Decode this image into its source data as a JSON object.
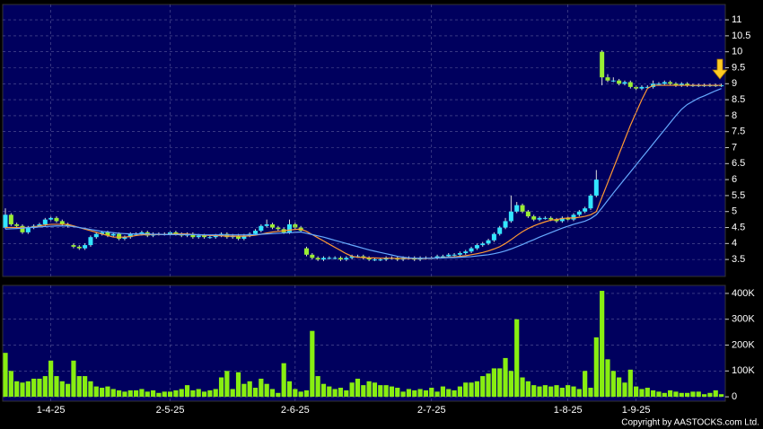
{
  "chart_data": [
    {
      "type": "candlestick",
      "up_color": "#33e6ff",
      "down_color": "#99ee33",
      "ylim": [
        2.97,
        11.48
      ],
      "yticks": [
        3.5,
        4,
        4.5,
        5,
        5.5,
        6,
        6.5,
        7,
        7.5,
        8,
        8.5,
        9,
        9.5,
        10,
        10.5,
        11
      ],
      "grid": true,
      "open": [
        4.5,
        4.9,
        4.6,
        4.55,
        4.35,
        4.5,
        4.55,
        4.6,
        4.75,
        4.8,
        4.7,
        4.6,
        3.95,
        3.9,
        3.85,
        3.95,
        4.2,
        4.3,
        4.35,
        4.25,
        4.3,
        4.15,
        4.2,
        4.3,
        4.3,
        4.35,
        4.25,
        4.3,
        4.3,
        4.3,
        4.35,
        4.3,
        4.25,
        4.3,
        4.2,
        4.25,
        4.2,
        4.2,
        4.25,
        4.3,
        4.2,
        4.25,
        4.15,
        4.25,
        4.3,
        4.4,
        4.55,
        4.6,
        4.5,
        4.45,
        4.35,
        4.6,
        4.5,
        3.85,
        3.65,
        3.55,
        3.5,
        3.55,
        3.55,
        3.55,
        3.5,
        3.55,
        3.6,
        3.6,
        3.55,
        3.5,
        3.5,
        3.5,
        3.55,
        3.55,
        3.5,
        3.55,
        3.55,
        3.5,
        3.55,
        3.55,
        3.55,
        3.6,
        3.6,
        3.65,
        3.65,
        3.7,
        3.75,
        3.85,
        3.95,
        4.0,
        4.1,
        4.3,
        4.5,
        4.7,
        5.0,
        5.2,
        5.0,
        4.85,
        4.75,
        4.8,
        4.8,
        4.75,
        4.7,
        4.8,
        4.75,
        4.9,
        5.0,
        5.1,
        5.5,
        10.0,
        9.2,
        9.1,
        9.1,
        9.0,
        9.05,
        8.9,
        8.85,
        8.9,
        8.9,
        9.0,
        9.0,
        9.05,
        9.0,
        8.95,
        9.0,
        8.95,
        8.95,
        8.95,
        8.95,
        8.95,
        8.95
      ],
      "high": [
        5.1,
        4.95,
        4.65,
        4.6,
        4.55,
        4.6,
        4.65,
        4.8,
        4.85,
        4.85,
        4.75,
        4.65,
        4.0,
        3.95,
        4.0,
        4.25,
        4.35,
        4.4,
        4.4,
        4.35,
        4.35,
        4.25,
        4.35,
        4.35,
        4.4,
        4.4,
        4.35,
        4.35,
        4.35,
        4.4,
        4.4,
        4.35,
        4.35,
        4.35,
        4.3,
        4.3,
        4.25,
        4.3,
        4.35,
        4.35,
        4.3,
        4.3,
        4.3,
        4.35,
        4.45,
        4.6,
        4.75,
        4.65,
        4.55,
        4.5,
        4.75,
        4.65,
        4.55,
        3.9,
        3.7,
        3.6,
        3.6,
        3.6,
        3.6,
        3.6,
        3.6,
        3.65,
        3.65,
        3.65,
        3.6,
        3.55,
        3.55,
        3.6,
        3.6,
        3.6,
        3.6,
        3.6,
        3.6,
        3.6,
        3.6,
        3.6,
        3.65,
        3.65,
        3.7,
        3.7,
        3.75,
        3.8,
        3.9,
        4.0,
        4.05,
        4.15,
        4.35,
        4.55,
        4.8,
        5.5,
        5.3,
        5.25,
        5.05,
        4.9,
        4.85,
        4.85,
        4.85,
        4.8,
        4.85,
        4.85,
        4.95,
        5.05,
        5.15,
        5.55,
        6.3,
        10.05,
        9.3,
        9.2,
        9.15,
        9.1,
        9.1,
        8.95,
        8.95,
        8.95,
        9.1,
        9.05,
        9.1,
        9.1,
        9.05,
        9.05,
        9.05,
        9.0,
        9.0,
        9.0,
        9.0,
        9.0,
        9.0
      ],
      "low": [
        4.45,
        4.55,
        4.5,
        4.3,
        4.3,
        4.45,
        4.5,
        4.55,
        4.7,
        4.65,
        4.55,
        4.5,
        3.85,
        3.8,
        3.8,
        3.9,
        4.15,
        4.25,
        4.2,
        4.2,
        4.1,
        4.1,
        4.15,
        4.25,
        4.25,
        4.2,
        4.2,
        4.25,
        4.25,
        4.25,
        4.25,
        4.2,
        4.2,
        4.15,
        4.15,
        4.15,
        4.15,
        4.15,
        4.2,
        4.15,
        4.15,
        4.1,
        4.1,
        4.2,
        4.25,
        4.35,
        4.5,
        4.45,
        4.4,
        4.3,
        4.3,
        4.45,
        4.35,
        3.6,
        3.5,
        3.45,
        3.45,
        3.5,
        3.5,
        3.45,
        3.45,
        3.5,
        3.55,
        3.5,
        3.45,
        3.45,
        3.45,
        3.45,
        3.5,
        3.45,
        3.45,
        3.5,
        3.45,
        3.45,
        3.5,
        3.5,
        3.5,
        3.55,
        3.55,
        3.6,
        3.6,
        3.65,
        3.7,
        3.8,
        3.9,
        3.95,
        4.05,
        4.25,
        4.45,
        4.65,
        4.95,
        4.95,
        4.8,
        4.7,
        4.7,
        4.75,
        4.7,
        4.65,
        4.65,
        4.7,
        4.7,
        4.85,
        4.95,
        5.05,
        5.45,
        8.95,
        9.05,
        9.05,
        8.95,
        8.95,
        8.85,
        8.8,
        8.8,
        8.85,
        8.85,
        8.95,
        8.95,
        8.95,
        8.9,
        8.9,
        8.9,
        8.9,
        8.9,
        8.9,
        8.9,
        8.9,
        8.9
      ],
      "close": [
        4.9,
        4.6,
        4.55,
        4.35,
        4.5,
        4.55,
        4.6,
        4.75,
        4.8,
        4.7,
        4.6,
        4.55,
        3.9,
        3.85,
        3.95,
        4.2,
        4.3,
        4.35,
        4.25,
        4.3,
        4.15,
        4.2,
        4.3,
        4.3,
        4.35,
        4.25,
        4.3,
        4.3,
        4.3,
        4.35,
        4.3,
        4.25,
        4.3,
        4.2,
        4.25,
        4.2,
        4.2,
        4.25,
        4.3,
        4.2,
        4.25,
        4.15,
        4.25,
        4.3,
        4.4,
        4.55,
        4.6,
        4.5,
        4.45,
        4.35,
        4.6,
        4.5,
        4.4,
        3.65,
        3.55,
        3.5,
        3.55,
        3.55,
        3.55,
        3.5,
        3.55,
        3.6,
        3.6,
        3.55,
        3.5,
        3.5,
        3.5,
        3.55,
        3.55,
        3.5,
        3.55,
        3.55,
        3.5,
        3.55,
        3.55,
        3.55,
        3.6,
        3.6,
        3.65,
        3.65,
        3.7,
        3.75,
        3.85,
        3.95,
        4.0,
        4.1,
        4.3,
        4.5,
        4.7,
        5.0,
        5.2,
        5.0,
        4.85,
        4.75,
        4.8,
        4.8,
        4.75,
        4.7,
        4.8,
        4.75,
        4.9,
        5.0,
        5.1,
        5.5,
        6.0,
        9.2,
        9.1,
        9.1,
        9.0,
        9.05,
        8.9,
        8.85,
        8.9,
        8.9,
        9.0,
        9.0,
        9.05,
        9.0,
        8.95,
        9.0,
        8.95,
        8.95,
        8.95,
        8.95,
        8.95,
        8.95,
        8.95
      ],
      "lines": [
        {
          "color": "#ff9933",
          "values": [
            4.5,
            4.5,
            4.5,
            4.5,
            4.5,
            4.52,
            4.55,
            4.58,
            4.6,
            4.6,
            4.6,
            4.6,
            4.55,
            4.5,
            4.45,
            4.4,
            4.35,
            4.3,
            4.25,
            4.2,
            4.2,
            4.2,
            4.22,
            4.25,
            4.27,
            4.28,
            4.28,
            4.28,
            4.28,
            4.29,
            4.3,
            4.3,
            4.3,
            4.28,
            4.27,
            4.26,
            4.25,
            4.25,
            4.24,
            4.23,
            4.23,
            4.23,
            4.23,
            4.24,
            4.26,
            4.29,
            4.33,
            4.36,
            4.38,
            4.4,
            4.42,
            4.44,
            4.45,
            4.38,
            4.28,
            4.18,
            4.08,
            3.98,
            3.88,
            3.78,
            3.68,
            3.6,
            3.57,
            3.56,
            3.55,
            3.55,
            3.54,
            3.54,
            3.54,
            3.53,
            3.53,
            3.53,
            3.53,
            3.53,
            3.53,
            3.54,
            3.55,
            3.56,
            3.57,
            3.58,
            3.6,
            3.62,
            3.65,
            3.68,
            3.72,
            3.77,
            3.83,
            3.9,
            4.0,
            4.12,
            4.25,
            4.37,
            4.47,
            4.55,
            4.62,
            4.68,
            4.73,
            4.75,
            4.78,
            4.8,
            4.8,
            4.82,
            4.85,
            4.9,
            5.0,
            5.45,
            5.9,
            6.35,
            6.8,
            7.25,
            7.7,
            8.1,
            8.5,
            8.85,
            8.95,
            8.95,
            8.95,
            8.95,
            8.95,
            8.95,
            8.95,
            8.95,
            8.95,
            8.95,
            8.95,
            8.95,
            8.95
          ]
        },
        {
          "color": "#66aaff",
          "values": [
            4.45,
            4.46,
            4.47,
            4.48,
            4.5,
            4.5,
            4.52,
            4.53,
            4.54,
            4.55,
            4.55,
            4.55,
            4.53,
            4.5,
            4.47,
            4.44,
            4.41,
            4.38,
            4.36,
            4.34,
            4.32,
            4.31,
            4.3,
            4.3,
            4.3,
            4.3,
            4.29,
            4.29,
            4.28,
            4.28,
            4.28,
            4.28,
            4.28,
            4.28,
            4.28,
            4.27,
            4.27,
            4.27,
            4.27,
            4.27,
            4.27,
            4.27,
            4.27,
            4.27,
            4.28,
            4.29,
            4.3,
            4.31,
            4.32,
            4.33,
            4.34,
            4.35,
            4.36,
            4.32,
            4.28,
            4.24,
            4.2,
            4.15,
            4.1,
            4.05,
            4.0,
            3.95,
            3.9,
            3.85,
            3.8,
            3.76,
            3.72,
            3.68,
            3.64,
            3.6,
            3.57,
            3.55,
            3.54,
            3.54,
            3.54,
            3.54,
            3.55,
            3.55,
            3.56,
            3.56,
            3.57,
            3.58,
            3.59,
            3.61,
            3.63,
            3.65,
            3.68,
            3.72,
            3.77,
            3.83,
            3.9,
            3.97,
            4.05,
            4.12,
            4.2,
            4.27,
            4.34,
            4.41,
            4.48,
            4.54,
            4.6,
            4.65,
            4.7,
            4.78,
            4.9,
            5.12,
            5.35,
            5.58,
            5.8,
            6.02,
            6.24,
            6.46,
            6.68,
            6.9,
            7.12,
            7.34,
            7.56,
            7.78,
            8.0,
            8.2,
            8.35,
            8.45,
            8.55,
            8.62,
            8.7,
            8.78,
            8.85
          ]
        }
      ]
    },
    {
      "type": "bar",
      "color": "#88ee11",
      "ylim": [
        -17000,
        431000
      ],
      "yticks": [
        0,
        {
          "value": 100000,
          "label": "100K"
        },
        {
          "value": 200000,
          "label": "200K"
        },
        {
          "value": 300000,
          "label": "300K"
        },
        {
          "value": 400000,
          "label": "400K"
        }
      ],
      "grid": true,
      "categories": [
        null,
        null,
        null,
        null,
        null,
        null,
        null,
        null,
        "1-4-25",
        null,
        null,
        null,
        null,
        null,
        null,
        null,
        null,
        null,
        null,
        null,
        null,
        null,
        null,
        null,
        null,
        null,
        null,
        null,
        null,
        "2-5-25",
        null,
        null,
        null,
        null,
        null,
        null,
        null,
        null,
        null,
        null,
        null,
        null,
        null,
        null,
        null,
        null,
        null,
        null,
        null,
        null,
        null,
        "2-6-25",
        null,
        null,
        null,
        null,
        null,
        null,
        null,
        null,
        null,
        null,
        null,
        null,
        null,
        null,
        null,
        null,
        null,
        null,
        null,
        null,
        null,
        null,
        null,
        "2-7-25",
        null,
        null,
        null,
        null,
        null,
        null,
        null,
        null,
        null,
        null,
        null,
        null,
        null,
        null,
        null,
        null,
        null,
        null,
        null,
        null,
        null,
        null,
        null,
        "1-8-25",
        null,
        null,
        null,
        null,
        null,
        null,
        null,
        null,
        null,
        null,
        null,
        "1-9-25",
        null,
        null,
        null,
        null,
        null,
        null,
        null,
        null,
        null,
        null,
        null,
        null,
        null,
        null,
        null
      ],
      "values": [
        170000,
        100000,
        60000,
        55000,
        60000,
        70000,
        70000,
        80000,
        140000,
        80000,
        60000,
        50000,
        140000,
        80000,
        80000,
        60000,
        40000,
        35000,
        40000,
        30000,
        25000,
        20000,
        25000,
        25000,
        30000,
        20000,
        25000,
        15000,
        20000,
        20000,
        25000,
        30000,
        45000,
        25000,
        30000,
        20000,
        25000,
        30000,
        75000,
        100000,
        30000,
        95000,
        50000,
        60000,
        35000,
        70000,
        50000,
        30000,
        15000,
        130000,
        60000,
        30000,
        20000,
        25000,
        255000,
        80000,
        50000,
        40000,
        30000,
        35000,
        25000,
        55000,
        70000,
        45000,
        60000,
        55000,
        45000,
        45000,
        40000,
        35000,
        20000,
        30000,
        25000,
        30000,
        25000,
        35000,
        20000,
        40000,
        30000,
        25000,
        40000,
        55000,
        55000,
        60000,
        80000,
        90000,
        110000,
        110000,
        150000,
        100000,
        300000,
        75000,
        60000,
        45000,
        40000,
        45000,
        40000,
        45000,
        35000,
        45000,
        40000,
        30000,
        100000,
        35000,
        230000,
        410000,
        145000,
        100000,
        75000,
        55000,
        105000,
        40000,
        30000,
        35000,
        25000,
        20000,
        15000,
        25000,
        20000,
        15000,
        15000,
        20000,
        20000,
        10000,
        15000,
        25000,
        10000
      ]
    }
  ],
  "copyright": "Copyright by AASTOCKS.com Ltd."
}
